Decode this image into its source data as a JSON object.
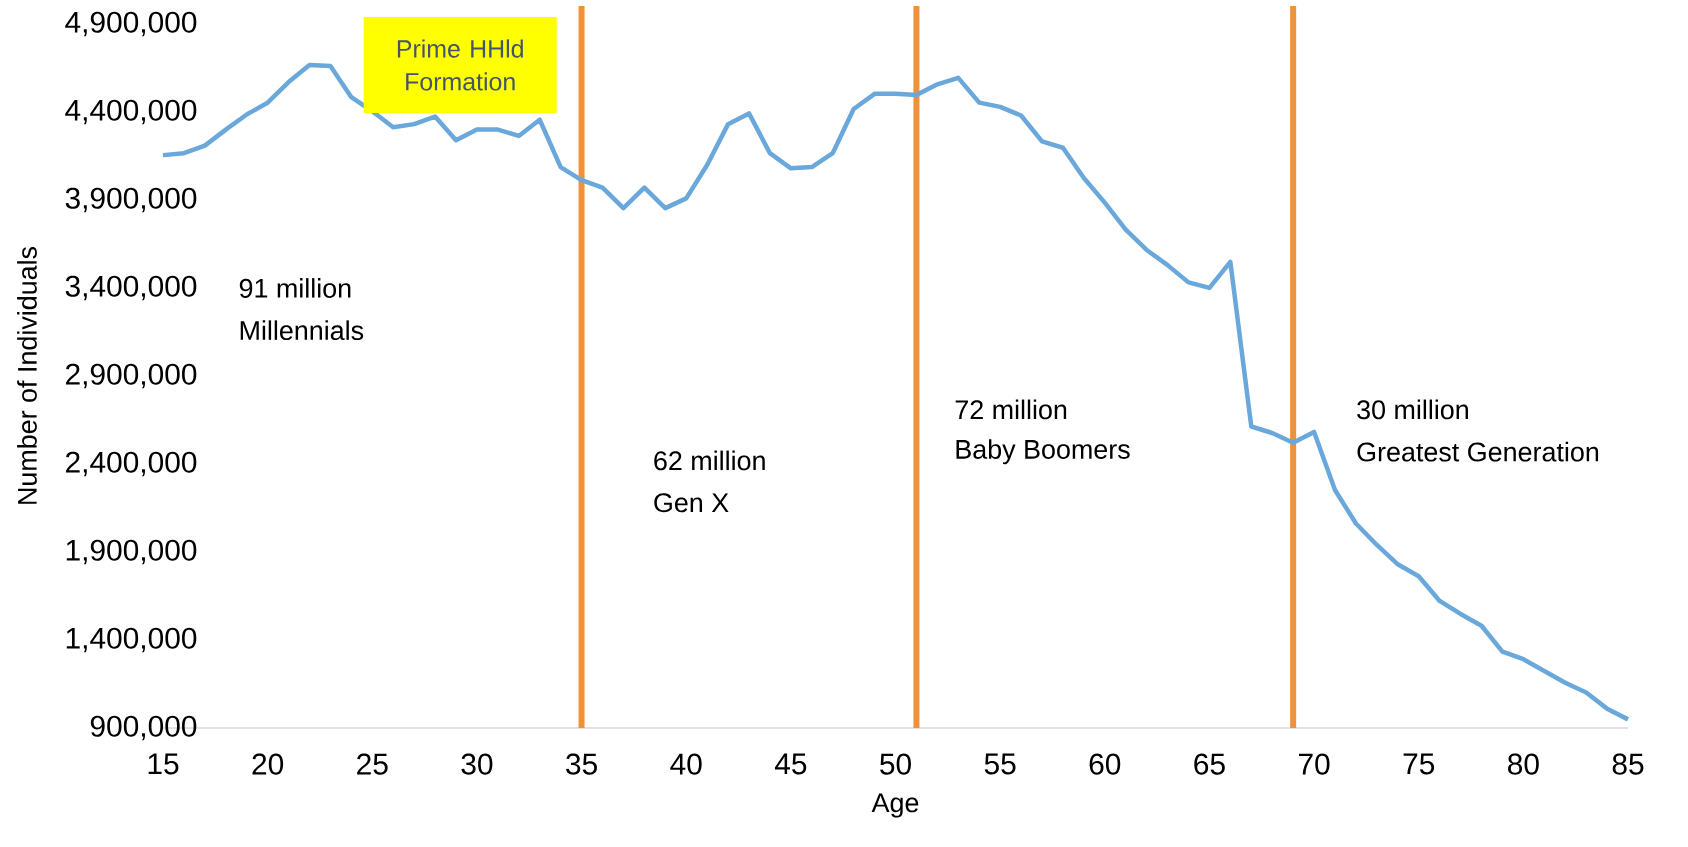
{
  "chart_data": {
    "type": "line",
    "xlabel": "Age",
    "ylabel": "Number of Individuals",
    "x": [
      15,
      16,
      17,
      18,
      19,
      20,
      21,
      22,
      23,
      24,
      25,
      26,
      27,
      28,
      29,
      30,
      31,
      32,
      33,
      34,
      35,
      36,
      37,
      38,
      39,
      40,
      41,
      42,
      43,
      44,
      45,
      46,
      47,
      48,
      49,
      50,
      51,
      52,
      53,
      54,
      55,
      56,
      57,
      58,
      59,
      60,
      61,
      62,
      63,
      64,
      65,
      66,
      67,
      68,
      69,
      70,
      71,
      72,
      73,
      74,
      75,
      76,
      77,
      78,
      79,
      80,
      81,
      82,
      83,
      84,
      85
    ],
    "series": [
      {
        "color": "#6aa8dc",
        "values": [
          4155000,
          4166000,
          4209000,
          4300000,
          4386000,
          4453000,
          4570000,
          4667000,
          4661000,
          4484000,
          4404000,
          4313000,
          4331000,
          4374000,
          4239000,
          4300000,
          4300000,
          4264000,
          4356000,
          4087000,
          4013000,
          3970000,
          3854000,
          3970000,
          3854000,
          3909000,
          4099000,
          4331000,
          4392000,
          4166000,
          4080000,
          4087000,
          4166000,
          4417000,
          4503000,
          4503000,
          4496000,
          4557000,
          4594000,
          4453000,
          4429000,
          4380000,
          4233000,
          4197000,
          4025000,
          3885000,
          3732000,
          3616000,
          3530000,
          3432000,
          3401000,
          3548000,
          2613000,
          2576000,
          2521000,
          2582000,
          2252000,
          2062000,
          1940000,
          1830000,
          1762000,
          1622000,
          1548000,
          1481000,
          1334000,
          1291000,
          1224000,
          1157000,
          1102000,
          1010000,
          949000
        ]
      }
    ],
    "xlim": [
      15,
      85
    ],
    "xticks": [
      15,
      20,
      25,
      30,
      35,
      40,
      45,
      50,
      55,
      60,
      65,
      70,
      75,
      80,
      85
    ],
    "ylim": [
      900000,
      4900000
    ],
    "yticks": [
      {
        "value": 900000,
        "label": "900,000"
      },
      {
        "value": 1400000,
        "label": "1,400,000"
      },
      {
        "value": 1900000,
        "label": "1,900,000"
      },
      {
        "value": 2400000,
        "label": "2,400,000"
      },
      {
        "value": 2900000,
        "label": "2,900,000"
      },
      {
        "value": 3400000,
        "label": "3,400,000"
      },
      {
        "value": 3900000,
        "label": "3,900,000"
      },
      {
        "value": 4400000,
        "label": "4,400,000"
      },
      {
        "value": 4900000,
        "label": "4,900,000"
      }
    ],
    "ref_lines": [
      {
        "axis": "x",
        "value": 35,
        "color": "#f0913a"
      },
      {
        "axis": "x",
        "value": 51,
        "color": "#f0913a"
      },
      {
        "axis": "x",
        "value": 69,
        "color": "#f0913a"
      }
    ],
    "annotations": [
      "Prime HHld Formation",
      "91 million",
      "Millennials",
      "62 million",
      "Gen X",
      "72 million",
      "Baby Boomers",
      "30 million",
      "Greatest Generation"
    ],
    "grid": false,
    "marker": "none",
    "line_style": "solid"
  }
}
